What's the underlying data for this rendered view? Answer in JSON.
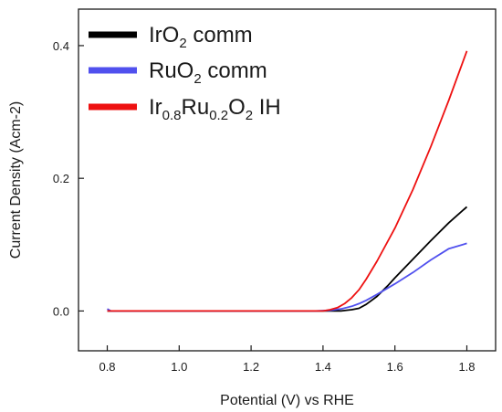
{
  "chart_data": {
    "type": "line",
    "xlabel": "Potential (V) vs RHE",
    "ylabel": "Current Density (Acm-2)",
    "xlim": [
      0.72,
      1.88
    ],
    "ylim": [
      -0.06,
      0.455
    ],
    "xticks": [
      0.8,
      1.0,
      1.2,
      1.4,
      1.6,
      1.8
    ],
    "xtick_labels": [
      "0.8",
      "1.0",
      "1.2",
      "1.4",
      "1.6",
      "1.8"
    ],
    "yticks": [
      0.0,
      0.2,
      0.4
    ],
    "ytick_labels": [
      "0.0",
      "0.2",
      "0.4"
    ],
    "grid": false,
    "legend_position": "top-left",
    "series": [
      {
        "name": "IrO2 comm",
        "legend_parts": [
          {
            "text": "IrO",
            "sub": false
          },
          {
            "text": "2",
            "sub": true
          },
          {
            "text": " comm",
            "sub": false
          }
        ],
        "color": "#000000",
        "x": [
          0.8,
          1.0,
          1.2,
          1.4,
          1.45,
          1.48,
          1.5,
          1.52,
          1.55,
          1.58,
          1.6,
          1.65,
          1.7,
          1.75,
          1.8
        ],
        "y": [
          0.0,
          0.0,
          0.0,
          0.0,
          0.0,
          0.002,
          0.004,
          0.01,
          0.022,
          0.038,
          0.05,
          0.078,
          0.106,
          0.133,
          0.157
        ]
      },
      {
        "name": "RuO2 comm",
        "legend_parts": [
          {
            "text": "RuO",
            "sub": false
          },
          {
            "text": "2",
            "sub": true
          },
          {
            "text": " comm",
            "sub": false
          }
        ],
        "color": "#5050ee",
        "x": [
          0.8,
          0.81,
          1.0,
          1.2,
          1.38,
          1.42,
          1.45,
          1.48,
          1.5,
          1.52,
          1.55,
          1.6,
          1.65,
          1.7,
          1.75,
          1.8
        ],
        "y": [
          0.003,
          0.0,
          0.0,
          0.0,
          0.0,
          0.001,
          0.003,
          0.007,
          0.011,
          0.016,
          0.025,
          0.041,
          0.058,
          0.077,
          0.094,
          0.102
        ]
      },
      {
        "name": "Ir0.8Ru0.2O2 IH",
        "legend_parts": [
          {
            "text": "Ir",
            "sub": false
          },
          {
            "text": "0.8",
            "sub": true
          },
          {
            "text": "Ru",
            "sub": false
          },
          {
            "text": "0.2",
            "sub": true
          },
          {
            "text": "O",
            "sub": false
          },
          {
            "text": "2",
            "sub": true
          },
          {
            "text": " IH",
            "sub": false
          }
        ],
        "color": "#ee1111",
        "x": [
          0.8,
          1.0,
          1.2,
          1.4,
          1.42,
          1.44,
          1.46,
          1.48,
          1.5,
          1.52,
          1.55,
          1.6,
          1.65,
          1.7,
          1.75,
          1.8
        ],
        "y": [
          0.0,
          0.0,
          0.0,
          0.0,
          0.002,
          0.005,
          0.011,
          0.02,
          0.032,
          0.048,
          0.075,
          0.125,
          0.183,
          0.248,
          0.318,
          0.392
        ]
      }
    ]
  },
  "colors": {
    "axis": "#1a1a1a",
    "background": "#ffffff"
  }
}
